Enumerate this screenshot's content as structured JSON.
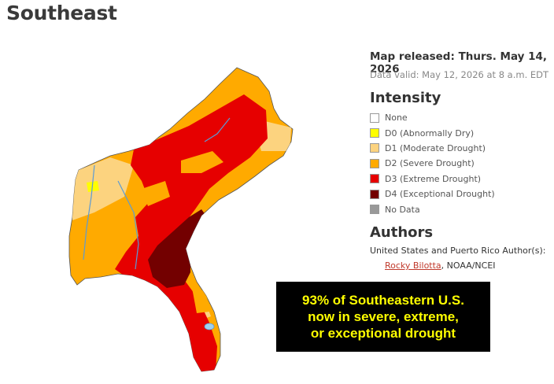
{
  "page": {
    "title": "Southeast"
  },
  "meta": {
    "released": "Map released: Thurs. May 14, 2026",
    "valid": "Data valid: May 12, 2026 at 8 a.m. EDT"
  },
  "legend": {
    "heading": "Intensity",
    "items": [
      {
        "label": "None",
        "color": "#ffffff"
      },
      {
        "label": "D0 (Abnormally Dry)",
        "color": "#ffff00"
      },
      {
        "label": "D1 (Moderate Drought)",
        "color": "#fcd37f"
      },
      {
        "label": "D2 (Severe Drought)",
        "color": "#ffaa00"
      },
      {
        "label": "D3 (Extreme Drought)",
        "color": "#e60000"
      },
      {
        "label": "D4 (Exceptional Drought)",
        "color": "#730000"
      },
      {
        "label": "No Data",
        "color": "#999999"
      }
    ]
  },
  "authors": {
    "heading": "Authors",
    "line": "United States and Puerto Rico Author(s):",
    "name": "Rocky Bilotta",
    "affiliation": ", NOAA/NCEI"
  },
  "callout": {
    "text": "93% of Southeastern U.S.\nnow in severe, extreme,\nor exceptional drought"
  }
}
